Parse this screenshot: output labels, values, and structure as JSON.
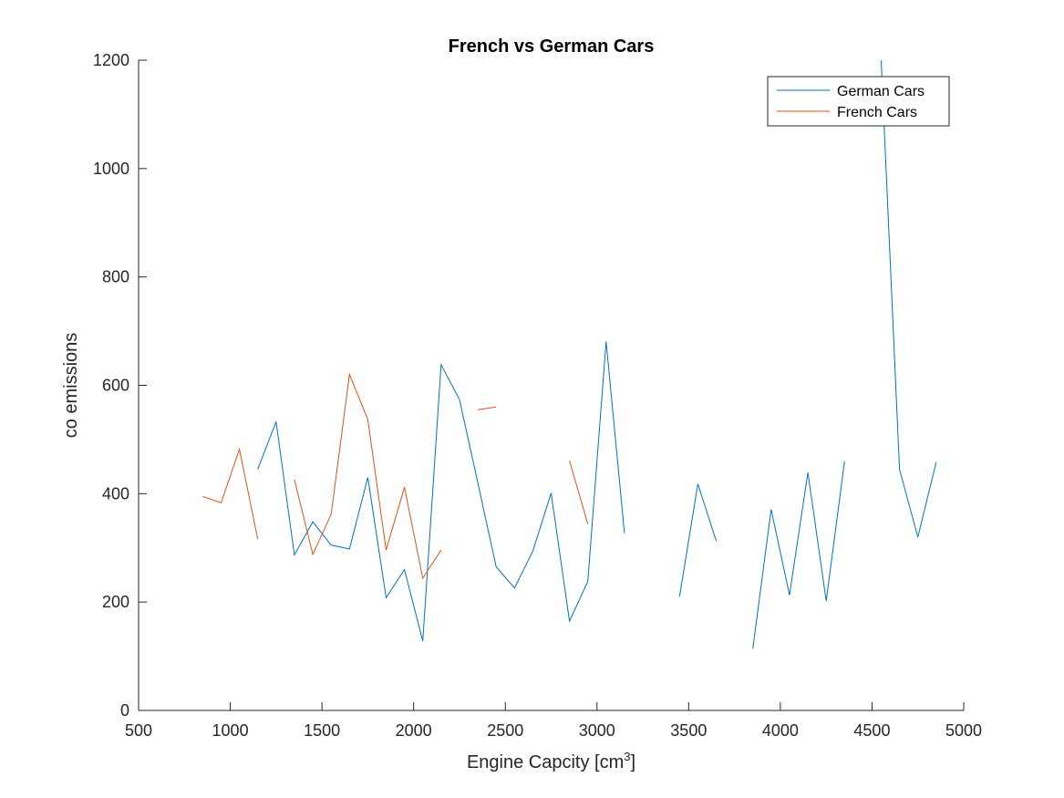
{
  "chart_data": {
    "type": "line",
    "title": "French vs German Cars",
    "xlabel": "Engine Capcity [cm",
    "xlabel_superscript": "3",
    "xlabel_suffix": "]",
    "ylabel": "co emissions",
    "xlim": [
      500,
      5000
    ],
    "ylim": [
      0,
      1200
    ],
    "xticks": [
      500,
      1000,
      1500,
      2000,
      2500,
      3000,
      3500,
      4000,
      4500,
      5000
    ],
    "yticks": [
      0,
      200,
      400,
      600,
      800,
      1000,
      1200
    ],
    "grid": false,
    "legend_position": "top-right",
    "series": [
      {
        "name": "German Cars",
        "color": "#0072BD",
        "x": [
          1150,
          1250,
          1350,
          1450,
          1550,
          1650,
          1750,
          1850,
          1950,
          2050,
          2150,
          2250,
          2350,
          2450,
          2550,
          2650,
          2750,
          2850,
          2950,
          3050,
          3150,
          3250,
          3350,
          3450,
          3550,
          3650,
          3750,
          3850,
          3950,
          4050,
          4150,
          4250,
          4350,
          4450,
          4550,
          4650,
          4750,
          4850
        ],
        "y": [
          445,
          533,
          287,
          348,
          305,
          298,
          430,
          208,
          260,
          128,
          638,
          574,
          420,
          265,
          226,
          294,
          401,
          165,
          238,
          681,
          327,
          null,
          null,
          210,
          418,
          313,
          null,
          114,
          371,
          213,
          439,
          202,
          460,
          null,
          1200,
          445,
          320,
          458
        ]
      },
      {
        "name": "French Cars",
        "color": "#D95319",
        "x": [
          850,
          950,
          1050,
          1150,
          1250,
          1350,
          1450,
          1550,
          1650,
          1750,
          1850,
          1950,
          2050,
          2150,
          2250,
          2350,
          2450,
          2550,
          2650,
          2750,
          2850,
          2950
        ],
        "y": [
          395,
          383,
          482,
          316,
          null,
          426,
          288,
          362,
          620,
          537,
          296,
          412,
          244,
          296,
          null,
          555,
          560,
          null,
          null,
          null,
          461,
          344
        ]
      }
    ]
  }
}
